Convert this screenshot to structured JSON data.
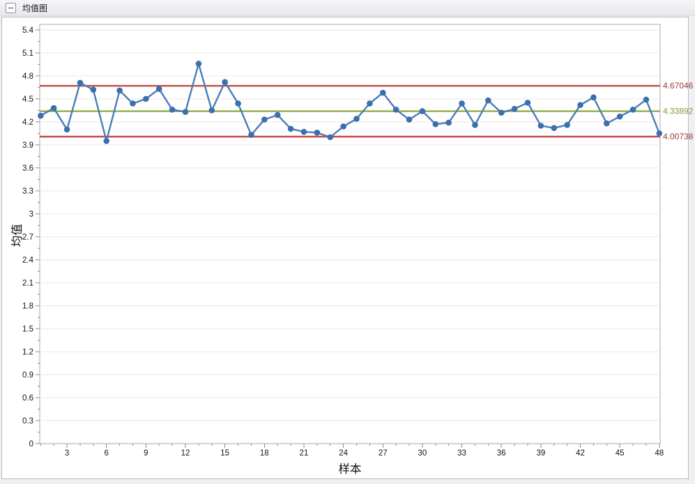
{
  "titlebar": {
    "title": "均值图",
    "collapse_icon": "minus-box",
    "collapse_glyph": "−"
  },
  "chart_data": {
    "type": "line",
    "title": "均值图",
    "xlabel": "样本",
    "ylabel": "均值",
    "x_start": 1,
    "values": [
      4.28,
      4.38,
      4.1,
      4.71,
      4.62,
      3.95,
      4.61,
      4.44,
      4.5,
      4.63,
      4.36,
      4.33,
      4.96,
      4.35,
      4.72,
      4.44,
      4.03,
      4.23,
      4.29,
      4.11,
      4.07,
      4.06,
      4.0,
      4.14,
      4.24,
      4.44,
      4.58,
      4.36,
      4.23,
      4.34,
      4.17,
      4.19,
      4.44,
      4.16,
      4.48,
      4.32,
      4.37,
      4.45,
      4.15,
      4.12,
      4.16,
      4.42,
      4.52,
      4.18,
      4.27,
      4.36,
      4.49,
      4.05
    ],
    "ylim": [
      0,
      5.4
    ],
    "ytick_step": 0.3,
    "yminor_step": 0.15,
    "xlim": [
      1,
      48
    ],
    "xtick_step": 3,
    "xminor_step": 1,
    "grid": "horizontal",
    "legend_position": "none",
    "control_lines": [
      {
        "name": "ucl",
        "label": "4.67046",
        "value": 4.67046,
        "color": "#c4534f",
        "label_color": "#9c3a39"
      },
      {
        "name": "center",
        "label": "4.33892",
        "value": 4.33892,
        "color": "#9ab457",
        "label_color": "#7e9a3d"
      },
      {
        "name": "lcl",
        "label": "4.00738",
        "value": 4.00738,
        "color": "#c4534f",
        "label_color": "#9c3a39"
      }
    ],
    "series_color": "#4a7cb8",
    "marker_color": "#3c6fae",
    "gridline_color": "#e7e7ea",
    "plot_border_color": "#aaaab0",
    "tick_color": "#8a8a90",
    "tick_label_color": "#141416"
  }
}
